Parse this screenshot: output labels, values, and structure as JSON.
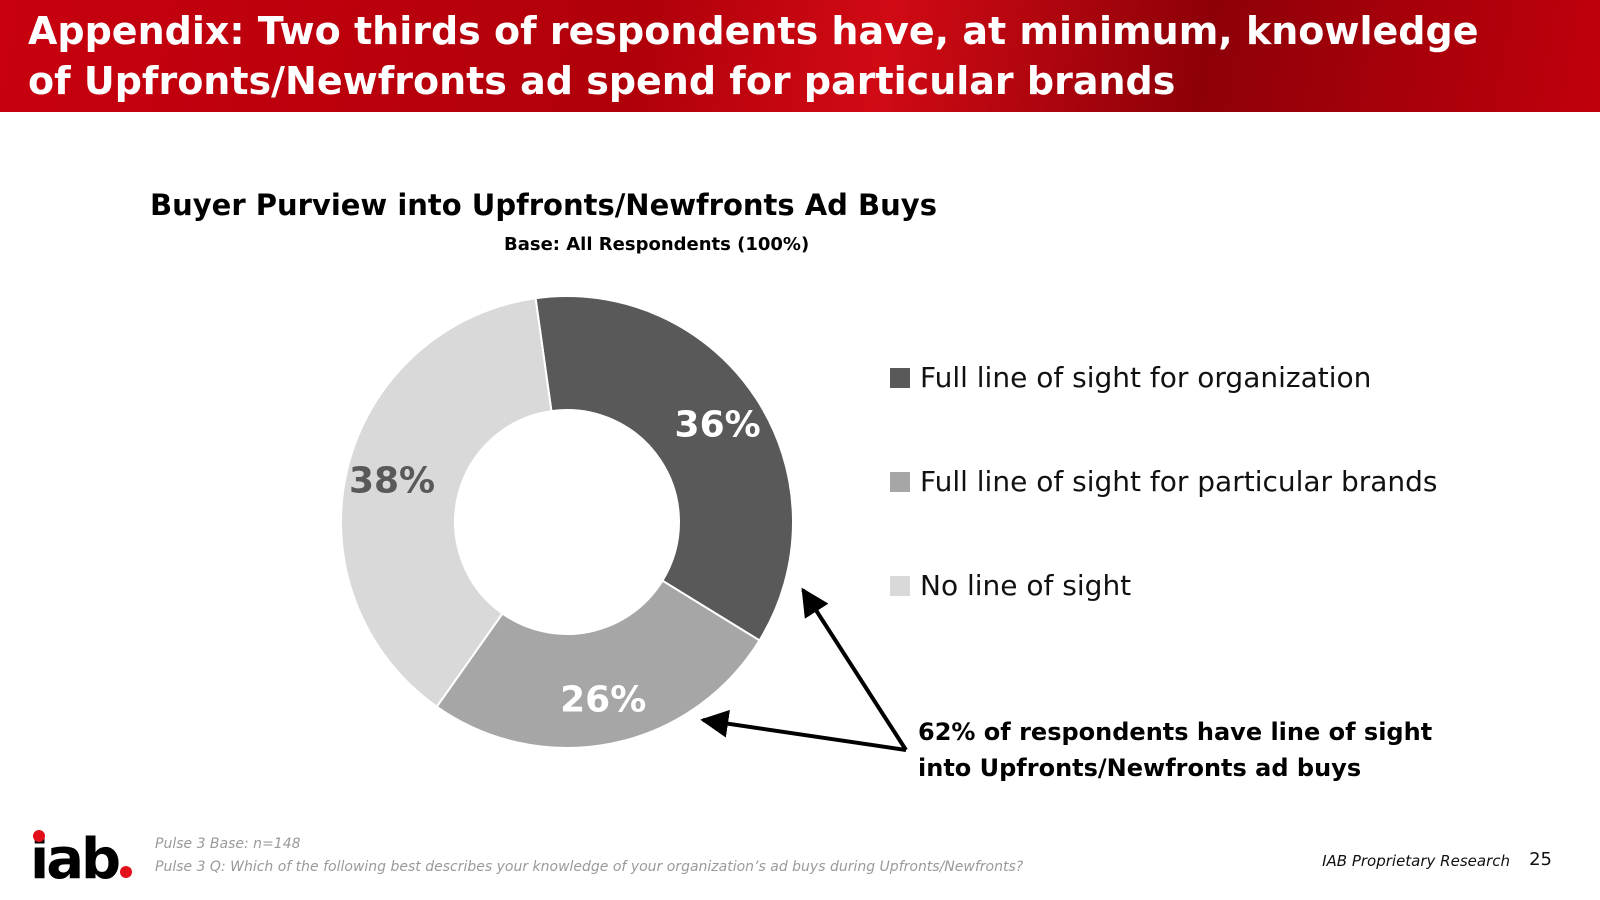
{
  "slide": {
    "title": "Appendix: Two thirds of respondents have, at minimum, knowledge of Upfronts/Newfronts ad spend for particular brands",
    "annotation": "62% of respondents have line of sight into Upfronts/Newfronts ad buys",
    "footnotes": [
      "Pulse 3 Base: n=148",
      "Pulse 3 Q: Which of the following best describes your knowledge of your organization’s ad buys during Upfronts/Newfronts?"
    ],
    "brand_credit": "IAB Proprietary Research",
    "page_number": "25",
    "logo_text": "iab"
  },
  "chart_data": {
    "type": "pie",
    "subtype": "donut",
    "title": "Buyer Purview into Upfronts/Newfronts Ad Buys",
    "subtitle": "Base:  All Respondents (100%)",
    "start_angle_deg": -8,
    "slices": [
      {
        "label": "Full line of sight for organization",
        "value": 36,
        "display": "36%",
        "color": "#595959",
        "label_color": "#ffffff"
      },
      {
        "label": "Full line of sight for particular brands",
        "value": 26,
        "display": "26%",
        "color": "#a6a6a6",
        "label_color": "#ffffff"
      },
      {
        "label": "No line of sight",
        "value": 38,
        "display": "38%",
        "color": "#d9d9d9",
        "label_color": "#595959"
      }
    ],
    "legend_position": "right"
  }
}
